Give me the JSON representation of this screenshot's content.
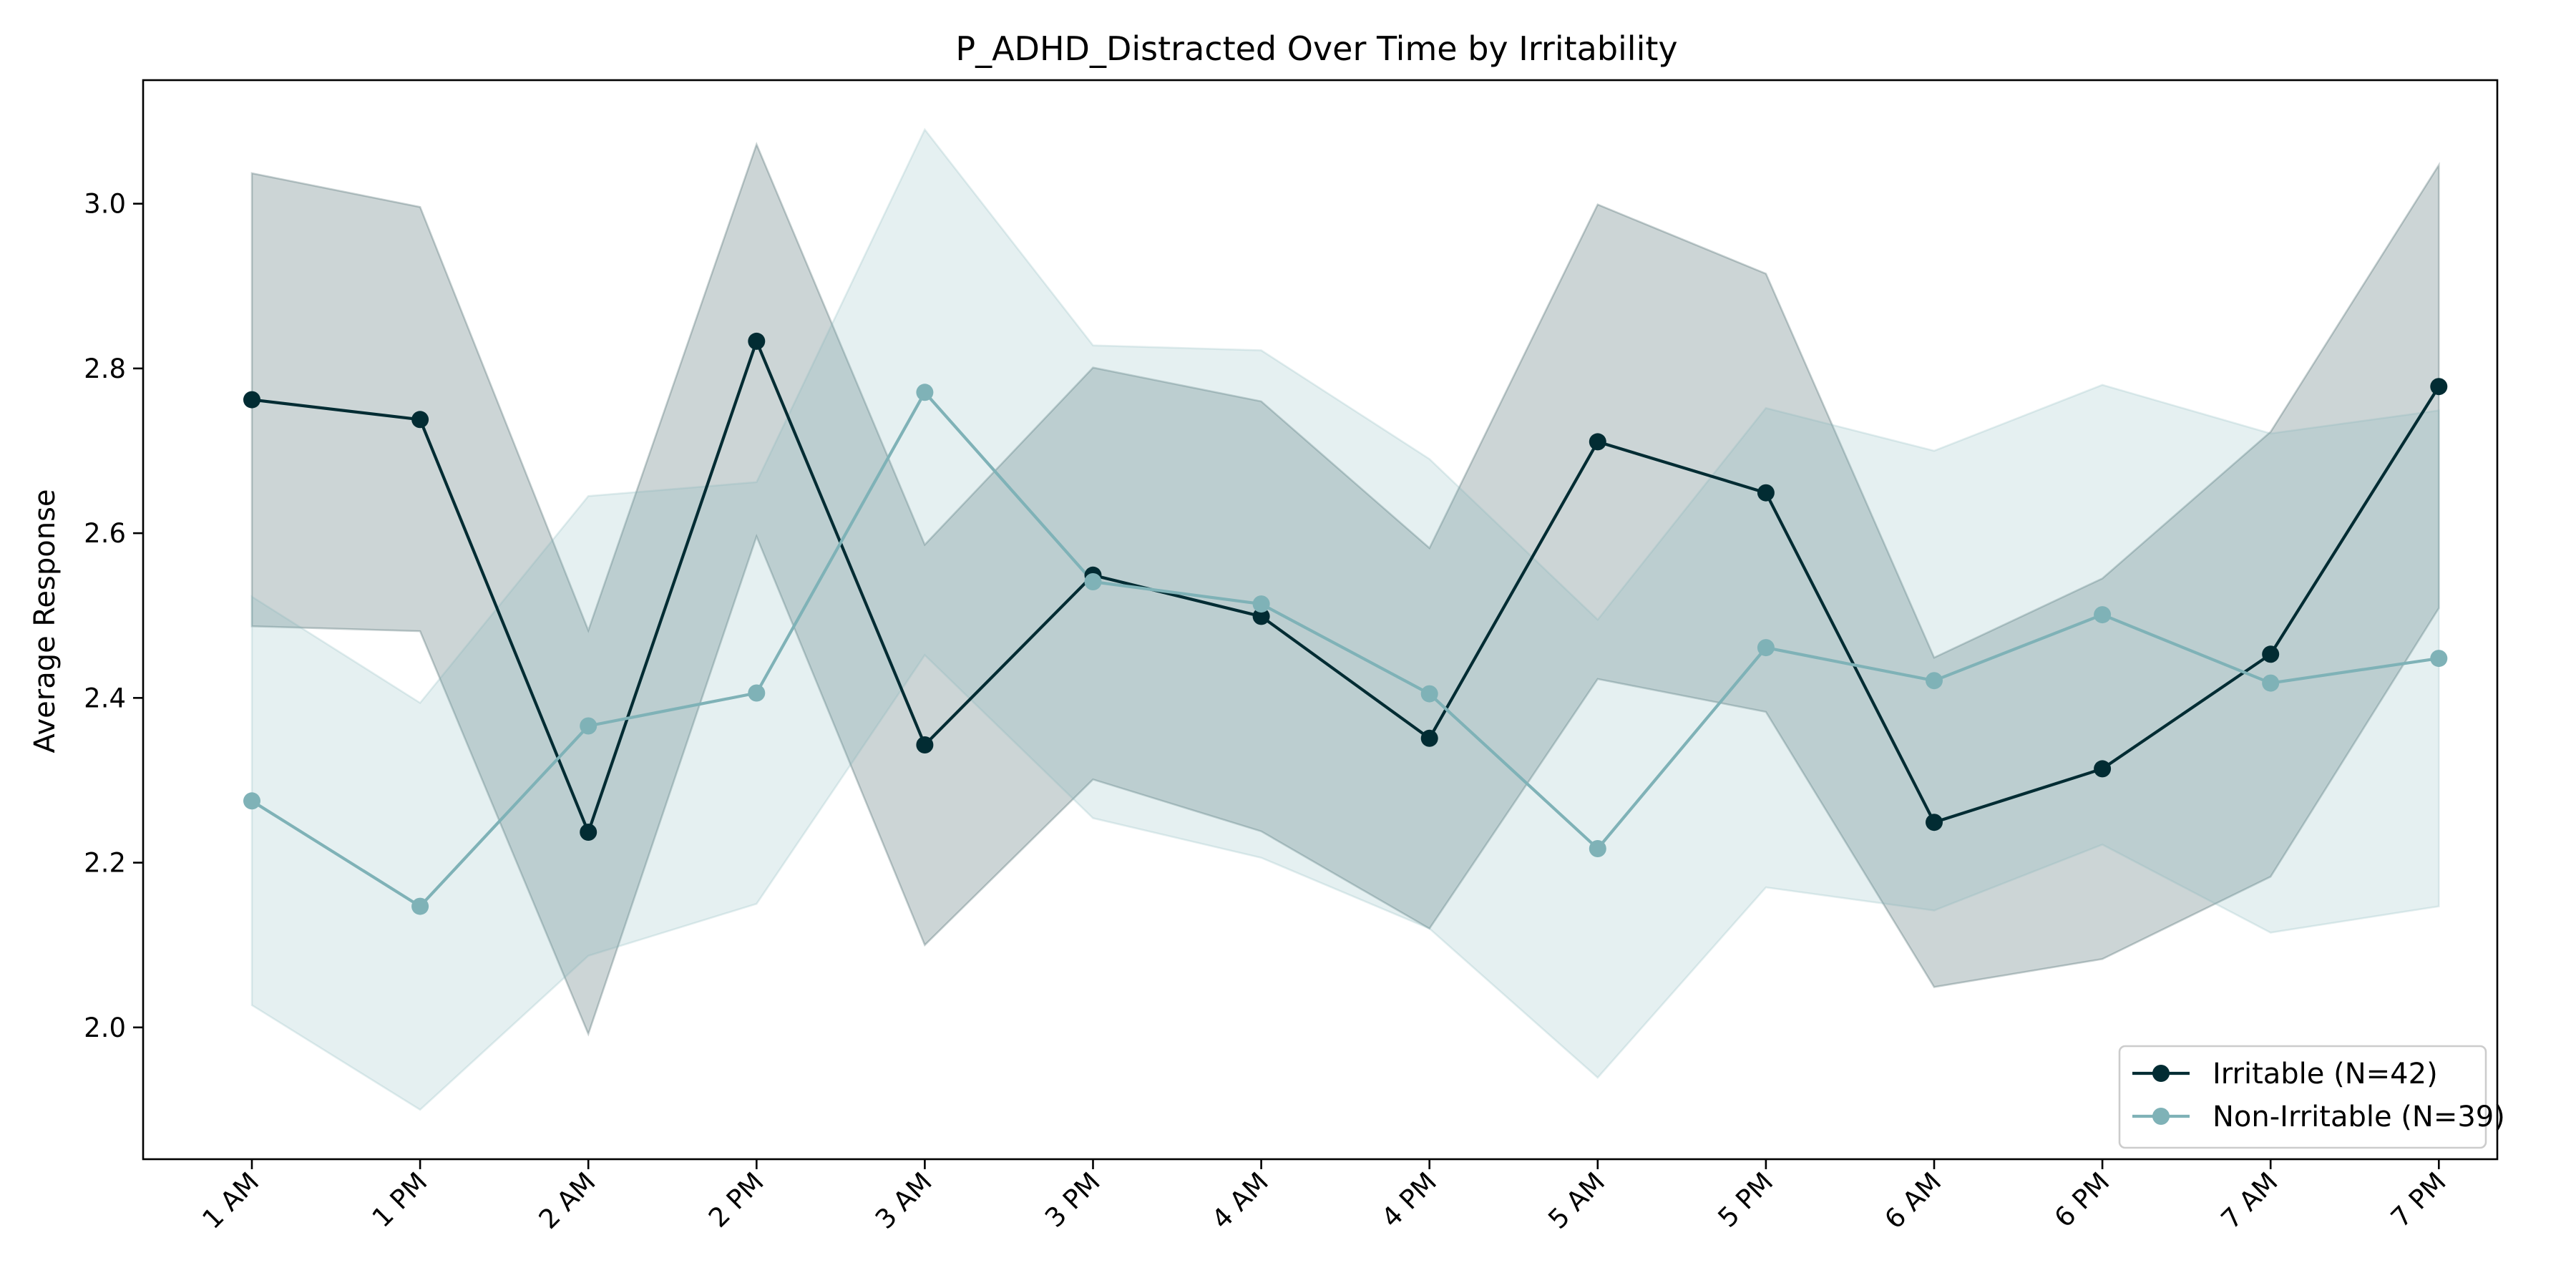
{
  "chart_data": {
    "type": "line",
    "title": "P_ADHD_Distracted Over Time by Irritability",
    "xlabel": "",
    "ylabel": "Average Response",
    "categories": [
      "1 AM",
      "1 PM",
      "2 AM",
      "2 PM",
      "3 AM",
      "3 PM",
      "4 AM",
      "4 PM",
      "5 AM",
      "5 PM",
      "6 AM",
      "6 PM",
      "7 AM",
      "7 PM"
    ],
    "ylim": [
      1.84,
      3.15
    ],
    "yticks": [
      "2.0",
      "2.2",
      "2.4",
      "2.6",
      "2.8",
      "3.0"
    ],
    "grid": false,
    "legend_position": "lower-right",
    "series": [
      {
        "name": "Irritable (N=42)",
        "color": "#022c33",
        "values": [
          2.762,
          2.738,
          2.237,
          2.833,
          2.343,
          2.549,
          2.499,
          2.351,
          2.711,
          2.649,
          2.249,
          2.314,
          2.453,
          2.778
        ],
        "lower": [
          2.487,
          2.481,
          1.992,
          2.596,
          2.1,
          2.301,
          2.238,
          2.12,
          2.423,
          2.383,
          2.049,
          2.083,
          2.183,
          2.509
        ],
        "upper": [
          3.037,
          2.996,
          2.482,
          3.072,
          2.586,
          2.801,
          2.76,
          2.582,
          2.999,
          2.915,
          2.449,
          2.545,
          2.723,
          3.047
        ]
      },
      {
        "name": "Non-Irritable (N=39)",
        "color": "#7fb2b7",
        "values": [
          2.275,
          2.147,
          2.366,
          2.406,
          2.771,
          2.541,
          2.514,
          2.405,
          2.217,
          2.461,
          2.421,
          2.501,
          2.418,
          2.448
        ],
        "lower": [
          2.027,
          1.9,
          2.087,
          2.15,
          2.452,
          2.254,
          2.206,
          2.12,
          1.939,
          2.17,
          2.142,
          2.222,
          2.115,
          2.147
        ],
        "upper": [
          2.523,
          2.394,
          2.645,
          2.662,
          3.09,
          2.828,
          2.822,
          2.69,
          2.495,
          2.752,
          2.7,
          2.78,
          2.721,
          2.749
        ]
      }
    ]
  }
}
